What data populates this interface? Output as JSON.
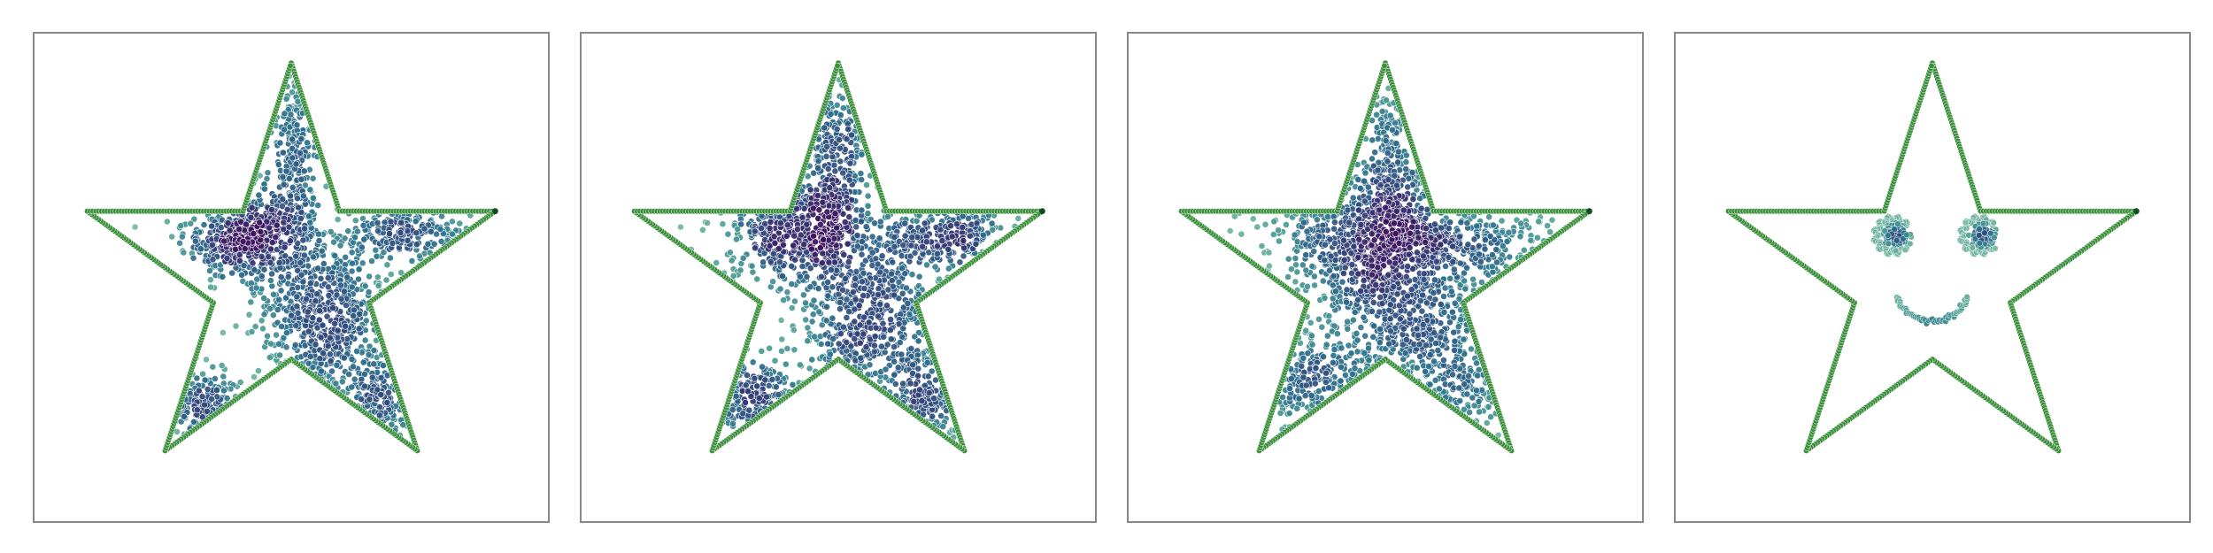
{
  "chart_data": [
    {
      "type": "scatter",
      "title": "",
      "xlabel": "",
      "ylabel": "",
      "xlim": [
        -1.1,
        1.1
      ],
      "ylim": [
        -1.05,
        1.05
      ],
      "grid": false,
      "legend": "none",
      "axes_ticks": false,
      "boundary": {
        "shape": "five-point star",
        "outer_vertices": [
          [
            0,
            0.92
          ],
          [
            0.875,
            0.284
          ],
          [
            0.541,
            -0.744
          ],
          [
            -0.541,
            -0.744
          ],
          [
            -0.875,
            0.284
          ]
        ],
        "inner_radius_ratio": 0.382,
        "color": "#3a8f3a"
      },
      "series": [
        {
          "style": "density-cloud",
          "clusters": [
            {
              "cx": -0.18,
              "cy": 0.18,
              "sx": 0.14,
              "sy": 0.1,
              "n": 520
            },
            {
              "cx": 0.15,
              "cy": -0.18,
              "sx": 0.14,
              "sy": 0.18,
              "n": 560
            },
            {
              "cx": 0.02,
              "cy": 0.55,
              "sx": 0.05,
              "sy": 0.22,
              "n": 230
            },
            {
              "cx": 0.5,
              "cy": 0.18,
              "sx": 0.13,
              "sy": 0.06,
              "n": 220
            },
            {
              "cx": -0.4,
              "cy": -0.55,
              "sx": 0.11,
              "sy": 0.07,
              "n": 150
            },
            {
              "cx": 0.38,
              "cy": -0.55,
              "sx": 0.07,
              "sy": 0.12,
              "n": 140
            }
          ]
        }
      ],
      "colormap": [
        "#3b0f5c",
        "#31447a",
        "#2a6e8c",
        "#4a9a94",
        "#7fbfa3"
      ]
    },
    {
      "type": "scatter",
      "title": "",
      "xlabel": "",
      "ylabel": "",
      "xlim": [
        -1.1,
        1.1
      ],
      "ylim": [
        -1.05,
        1.05
      ],
      "grid": false,
      "legend": "none",
      "axes_ticks": false,
      "boundary": {
        "shape": "five-point star",
        "outer_vertices": [
          [
            0,
            0.92
          ],
          [
            0.875,
            0.284
          ],
          [
            0.541,
            -0.744
          ],
          [
            -0.541,
            -0.744
          ],
          [
            -0.875,
            0.284
          ]
        ],
        "inner_radius_ratio": 0.382,
        "color": "#3a8f3a"
      },
      "series": [
        {
          "style": "density-cloud",
          "clusters": [
            {
              "cx": -0.18,
              "cy": 0.2,
              "sx": 0.16,
              "sy": 0.12,
              "n": 500
            },
            {
              "cx": 0.15,
              "cy": -0.15,
              "sx": 0.16,
              "sy": 0.2,
              "n": 560
            },
            {
              "cx": 0.0,
              "cy": 0.52,
              "sx": 0.07,
              "sy": 0.22,
              "n": 240
            },
            {
              "cx": 0.48,
              "cy": 0.18,
              "sx": 0.15,
              "sy": 0.08,
              "n": 230
            },
            {
              "cx": -0.38,
              "cy": -0.52,
              "sx": 0.13,
              "sy": 0.09,
              "n": 170
            },
            {
              "cx": 0.36,
              "cy": -0.52,
              "sx": 0.09,
              "sy": 0.13,
              "n": 150
            }
          ]
        }
      ],
      "colormap": [
        "#3b0f5c",
        "#31447a",
        "#2a6e8c",
        "#4a9a94",
        "#7fbfa3"
      ]
    },
    {
      "type": "scatter",
      "title": "",
      "xlabel": "",
      "ylabel": "",
      "xlim": [
        -1.1,
        1.1
      ],
      "ylim": [
        -1.05,
        1.05
      ],
      "grid": false,
      "legend": "none",
      "axes_ticks": false,
      "boundary": {
        "shape": "five-point star",
        "outer_vertices": [
          [
            0,
            0.92
          ],
          [
            0.875,
            0.284
          ],
          [
            0.541,
            -0.744
          ],
          [
            -0.541,
            -0.744
          ],
          [
            -0.875,
            0.284
          ]
        ],
        "inner_radius_ratio": 0.382,
        "color": "#3a8f3a"
      },
      "series": [
        {
          "style": "density-cloud",
          "clusters": [
            {
              "cx": -0.08,
              "cy": 0.18,
              "sx": 0.2,
              "sy": 0.14,
              "n": 650
            },
            {
              "cx": 0.08,
              "cy": -0.12,
              "sx": 0.18,
              "sy": 0.22,
              "n": 620
            },
            {
              "cx": 0.02,
              "cy": 0.5,
              "sx": 0.06,
              "sy": 0.2,
              "n": 200
            },
            {
              "cx": 0.4,
              "cy": 0.15,
              "sx": 0.18,
              "sy": 0.08,
              "n": 200
            },
            {
              "cx": -0.3,
              "cy": -0.45,
              "sx": 0.14,
              "sy": 0.12,
              "n": 200
            },
            {
              "cx": 0.3,
              "cy": -0.48,
              "sx": 0.12,
              "sy": 0.14,
              "n": 150
            }
          ]
        }
      ],
      "colormap": [
        "#3b0f5c",
        "#31447a",
        "#2a6e8c",
        "#4a9a94",
        "#7fbfa3"
      ]
    },
    {
      "type": "scatter",
      "title": "",
      "xlabel": "",
      "ylabel": "",
      "xlim": [
        -1.1,
        1.1
      ],
      "ylim": [
        -1.05,
        1.05
      ],
      "grid": false,
      "legend": "none",
      "axes_ticks": false,
      "boundary": {
        "shape": "five-point star",
        "outer_vertices": [
          [
            0,
            0.92
          ],
          [
            0.875,
            0.284
          ],
          [
            0.541,
            -0.744
          ],
          [
            -0.541,
            -0.744
          ],
          [
            -0.875,
            0.284
          ]
        ],
        "inner_radius_ratio": 0.382,
        "color": "#3a8f3a"
      },
      "series": [
        {
          "style": "smiley",
          "eyes": [
            {
              "cx": -0.17,
              "cy": 0.18,
              "r": 0.08
            },
            {
              "cx": 0.2,
              "cy": 0.18,
              "r": 0.08
            }
          ],
          "mouth": {
            "cx": 0.0,
            "cy": -0.03,
            "r": 0.16,
            "from_deg": 200,
            "to_deg": 340
          }
        }
      ],
      "colormap": [
        "#3b0f5c",
        "#31447a",
        "#2a6e8c",
        "#4a9a94",
        "#7fbfa3"
      ]
    }
  ]
}
